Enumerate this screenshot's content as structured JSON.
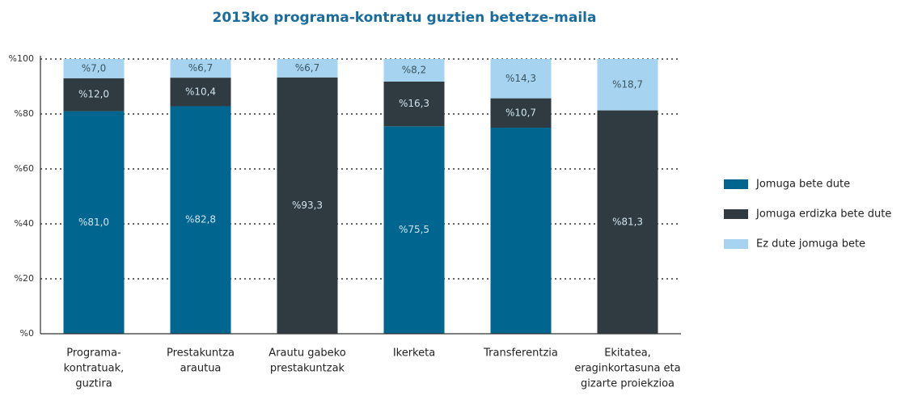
{
  "chart_data": {
    "type": "stacked-bar",
    "title": "2013ko programa-kontratu guztien betetze-maila",
    "categories": [
      [
        "Programa-",
        "kontratuak,",
        "guztira"
      ],
      [
        "Prestakuntza",
        "arautua"
      ],
      [
        "Arautu gabeko",
        "prestakuntzak"
      ],
      [
        "Ikerketa"
      ],
      [
        "Transferentzia"
      ],
      [
        "Ekitatea,",
        "eraginkortasuna eta",
        "gizarte proiekzioa"
      ]
    ],
    "series": [
      {
        "name": "Jomuga bete dute",
        "color": "#00668f",
        "values": [
          81.0,
          82.8,
          null,
          75.5,
          75.0,
          null
        ],
        "value_labels": [
          "%81,0",
          "%82,8",
          null,
          "%75,5",
          null,
          null
        ]
      },
      {
        "name": "Jomuga erdizka bete dute",
        "color": "#2f3b41",
        "values": [
          12.0,
          10.4,
          93.3,
          16.3,
          10.7,
          81.3
        ],
        "value_labels": [
          "%12,0",
          "%10,4",
          "%93,3",
          "%16,3",
          "%10,7",
          "%81,3"
        ]
      },
      {
        "name": "Ez dute jomuga bete",
        "color": "#a6d4f0",
        "values": [
          7.0,
          6.7,
          6.7,
          8.2,
          14.3,
          18.7
        ],
        "value_labels": [
          "%7,0",
          "%6,7",
          "%6,7",
          "%8,2",
          "%14,3",
          "%18,7"
        ]
      }
    ],
    "ylim": [
      0,
      100
    ],
    "yticks": [
      {
        "value": 0,
        "label": "%0"
      },
      {
        "value": 20,
        "label": "%20"
      },
      {
        "value": 40,
        "label": "%40"
      },
      {
        "value": 60,
        "label": "%60"
      },
      {
        "value": 80,
        "label": "%80"
      },
      {
        "value": 100,
        "label": "%100"
      }
    ],
    "grid": true,
    "legend": "right"
  }
}
